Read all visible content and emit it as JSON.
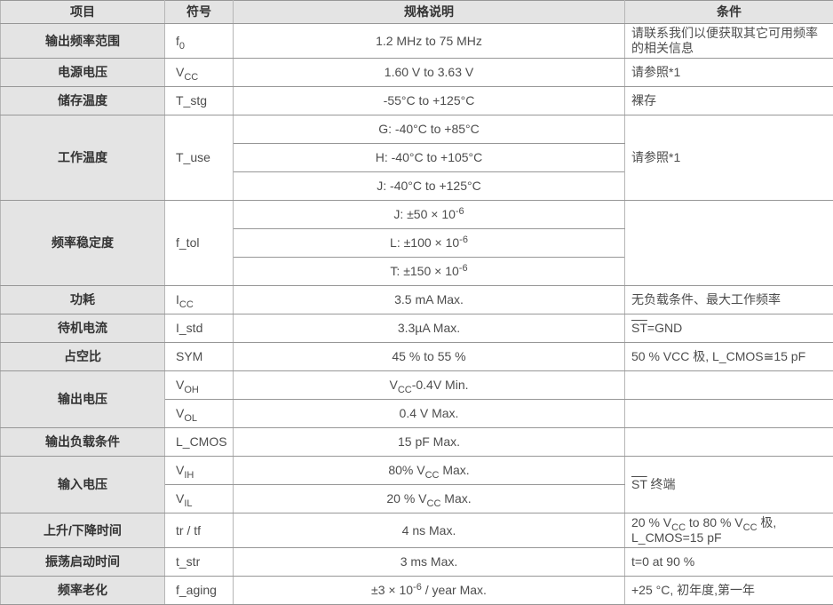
{
  "table": {
    "headers": [
      "项目",
      "符号",
      "规格说明",
      "条件"
    ],
    "groups": [
      {
        "item": "输出频率范围",
        "rows": [
          {
            "symbol": [
              [
                "f",
                ""
              ],
              [
                "0",
                "sub"
              ]
            ],
            "spec": [
              [
                "1.2 MHz to 75 MHz",
                ""
              ]
            ],
            "condition": [
              [
                "请联系我们以便获取其它可用频率的相关信息",
                ""
              ]
            ]
          }
        ]
      },
      {
        "item": "电源电压",
        "rows": [
          {
            "symbol": [
              [
                "V",
                ""
              ],
              [
                "CC",
                "sub"
              ]
            ],
            "spec": [
              [
                "1.60 V to 3.63 V",
                ""
              ]
            ],
            "condition": [
              [
                "请参照*1",
                ""
              ]
            ]
          }
        ]
      },
      {
        "item": "储存温度",
        "rows": [
          {
            "symbol": [
              [
                "T_stg",
                ""
              ]
            ],
            "spec": [
              [
                "-55°C to +125°C",
                ""
              ]
            ],
            "condition": [
              [
                "裸存",
                ""
              ]
            ]
          }
        ]
      },
      {
        "item": "工作温度",
        "symbol": [
          [
            "T_use",
            ""
          ]
        ],
        "condition": [
          [
            "请参照*1",
            ""
          ]
        ],
        "rows": [
          {
            "spec": [
              [
                "G: -40°C to +85°C",
                ""
              ]
            ]
          },
          {
            "spec": [
              [
                "H: -40°C to +105°C",
                ""
              ]
            ]
          },
          {
            "spec": [
              [
                "J: -40°C to +125°C",
                ""
              ]
            ]
          }
        ]
      },
      {
        "item": "频率稳定度",
        "symbol": [
          [
            "f_tol",
            ""
          ]
        ],
        "condition": [],
        "rows": [
          {
            "spec": [
              [
                "J: ±50 × 10",
                ""
              ],
              [
                "-6",
                "sup"
              ]
            ]
          },
          {
            "spec": [
              [
                "L: ±100 × 10",
                ""
              ],
              [
                "-6",
                "sup"
              ]
            ]
          },
          {
            "spec": [
              [
                "T: ±150 × 10",
                ""
              ],
              [
                "-6",
                "sup"
              ]
            ]
          }
        ]
      },
      {
        "item": "功耗",
        "rows": [
          {
            "symbol": [
              [
                "I",
                ""
              ],
              [
                "CC",
                "sub"
              ]
            ],
            "spec": [
              [
                "3.5 mA Max.",
                ""
              ]
            ],
            "condition": [
              [
                "无负载条件、最大工作频率",
                ""
              ]
            ]
          }
        ]
      },
      {
        "item": "待机电流",
        "rows": [
          {
            "symbol": [
              [
                "I_std",
                ""
              ]
            ],
            "spec": [
              [
                "3.3µA Max.",
                ""
              ]
            ],
            "condition": [
              [
                "ST",
                "over"
              ],
              [
                "=GND",
                ""
              ]
            ]
          }
        ]
      },
      {
        "item": "占空比",
        "rows": [
          {
            "symbol": [
              [
                "SYM",
                ""
              ]
            ],
            "spec": [
              [
                "45 % to 55 %",
                ""
              ]
            ],
            "condition": [
              [
                "50 % VCC 极, L_CMOS≅15 pF",
                ""
              ]
            ]
          }
        ]
      },
      {
        "item": "输出电压",
        "rows": [
          {
            "symbol": [
              [
                "V",
                ""
              ],
              [
                "OH",
                "sub"
              ]
            ],
            "spec": [
              [
                "V",
                ""
              ],
              [
                "CC",
                "sub"
              ],
              [
                "-0.4V Min.",
                ""
              ]
            ],
            "condition": []
          },
          {
            "symbol": [
              [
                "V",
                ""
              ],
              [
                "OL",
                "sub"
              ]
            ],
            "spec": [
              [
                "0.4 V Max.",
                ""
              ]
            ],
            "condition": []
          }
        ]
      },
      {
        "item": "输出负载条件",
        "rows": [
          {
            "symbol": [
              [
                "L_CMOS",
                ""
              ]
            ],
            "spec": [
              [
                "15 pF Max.",
                ""
              ]
            ],
            "condition": []
          }
        ]
      },
      {
        "item": "输入电压",
        "condition": [
          [
            "ST",
            "over"
          ],
          [
            " 终端",
            ""
          ]
        ],
        "rows": [
          {
            "symbol": [
              [
                "V",
                ""
              ],
              [
                "IH",
                "sub"
              ]
            ],
            "spec": [
              [
                "80% V",
                ""
              ],
              [
                "CC",
                "sub"
              ],
              [
                " Max.",
                ""
              ]
            ]
          },
          {
            "symbol": [
              [
                "V",
                ""
              ],
              [
                "IL",
                "sub"
              ]
            ],
            "spec": [
              [
                "20 % V",
                ""
              ],
              [
                "CC",
                "sub"
              ],
              [
                " Max.",
                ""
              ]
            ]
          }
        ]
      },
      {
        "item": "上升/下降时间",
        "rows": [
          {
            "symbol": [
              [
                "tr / tf",
                ""
              ]
            ],
            "spec": [
              [
                "4 ns Max.",
                ""
              ]
            ],
            "condition": [
              [
                "20 % V",
                ""
              ],
              [
                "CC",
                "sub"
              ],
              [
                " to 80 % V",
                ""
              ],
              [
                "CC",
                "sub"
              ],
              [
                " 极, L_CMOS=15 pF",
                ""
              ]
            ]
          }
        ]
      },
      {
        "item": "振荡启动时间",
        "rows": [
          {
            "symbol": [
              [
                "t_str",
                ""
              ]
            ],
            "spec": [
              [
                "3 ms Max.",
                ""
              ]
            ],
            "condition": [
              [
                "t=0 at 90 %",
                ""
              ]
            ]
          }
        ]
      },
      {
        "item": "频率老化",
        "rows": [
          {
            "symbol": [
              [
                "f_aging",
                ""
              ]
            ],
            "spec": [
              [
                "±3 × 10",
                ""
              ],
              [
                "-6",
                "sup"
              ],
              [
                " / year Max.",
                ""
              ]
            ],
            "condition": [
              [
                "+25 °C, 初年度,第一年",
                ""
              ]
            ]
          }
        ]
      }
    ]
  }
}
